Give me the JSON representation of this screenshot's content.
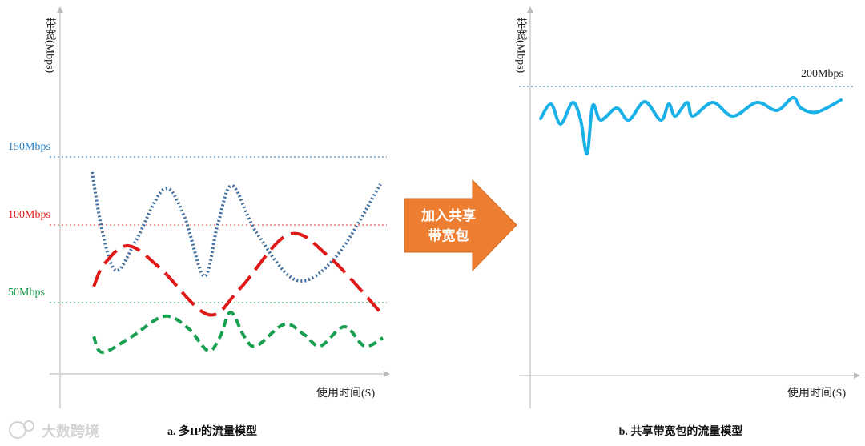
{
  "left": {
    "y_axis_label": "带宽(Mbps)",
    "lines": [
      "150Mbps",
      "100Mbps",
      "50Mbps"
    ],
    "x_axis_label": "使用时间(S)",
    "caption": "a. 多IP的流量模型"
  },
  "arrow": {
    "lines": [
      "加入共享",
      "带宽包"
    ]
  },
  "right": {
    "y_axis_label": "带宽(Mbps)",
    "line": "200Mbps",
    "x_axis_label": "使用时间(S)",
    "caption": "b. 共享带宽包的流量模型"
  },
  "watermark": "大数跨境"
}
